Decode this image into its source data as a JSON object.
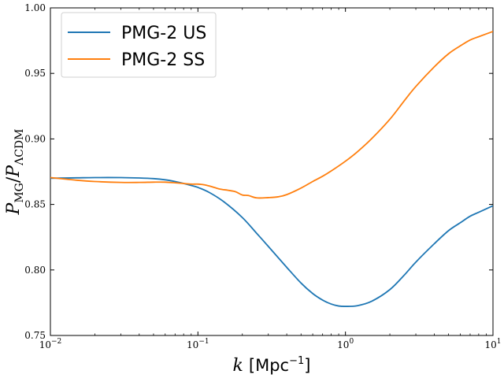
{
  "chart_data": {
    "type": "line",
    "title": "",
    "xlabel": "k [Mpc⁻¹]",
    "ylabel": "P_MG / P_ΛCDM",
    "xscale": "log",
    "xlim": [
      0.01,
      10
    ],
    "ylim": [
      0.75,
      1.0
    ],
    "xticks": [
      {
        "value": 0.01,
        "base": "10",
        "exp": "−2"
      },
      {
        "value": 0.1,
        "base": "10",
        "exp": "−1"
      },
      {
        "value": 1,
        "base": "10",
        "exp": "0"
      },
      {
        "value": 10,
        "base": "10",
        "exp": "1"
      }
    ],
    "yticks": [
      "0.75",
      "0.80",
      "0.85",
      "0.90",
      "0.95",
      "1.00"
    ],
    "legend_position": "top-left",
    "series": [
      {
        "name": "PMG-2 US",
        "color": "#1f77b4",
        "x": [
          0.01,
          0.015,
          0.02,
          0.03,
          0.04,
          0.05,
          0.06,
          0.07,
          0.08,
          0.09,
          0.1,
          0.12,
          0.15,
          0.2,
          0.25,
          0.3,
          0.4,
          0.5,
          0.6,
          0.7,
          0.8,
          0.9,
          1.0,
          1.2,
          1.5,
          2.0,
          2.5,
          3.0,
          4.0,
          5.0,
          6.0,
          7.0,
          8.0,
          10.0
        ],
        "y": [
          0.87,
          0.8703,
          0.8705,
          0.8705,
          0.8702,
          0.8697,
          0.8688,
          0.8675,
          0.866,
          0.8645,
          0.863,
          0.859,
          0.852,
          0.84,
          0.828,
          0.818,
          0.802,
          0.79,
          0.782,
          0.777,
          0.774,
          0.7725,
          0.7722,
          0.7727,
          0.776,
          0.785,
          0.796,
          0.806,
          0.82,
          0.83,
          0.836,
          0.841,
          0.844,
          0.849
        ]
      },
      {
        "name": "PMG-2 SS",
        "color": "#ff7f0e",
        "x": [
          0.01,
          0.015,
          0.02,
          0.03,
          0.04,
          0.05,
          0.06,
          0.07,
          0.08,
          0.09,
          0.1,
          0.11,
          0.12,
          0.14,
          0.16,
          0.18,
          0.2,
          0.22,
          0.25,
          0.3,
          0.35,
          0.4,
          0.5,
          0.6,
          0.7,
          0.8,
          1.0,
          1.2,
          1.5,
          2.0,
          2.5,
          3.0,
          4.0,
          5.0,
          6.0,
          7.0,
          8.0,
          10.0
        ],
        "y": [
          0.8705,
          0.8685,
          0.8675,
          0.8668,
          0.8668,
          0.867,
          0.867,
          0.8665,
          0.866,
          0.8655,
          0.8655,
          0.865,
          0.864,
          0.8618,
          0.8608,
          0.8597,
          0.8572,
          0.8568,
          0.855,
          0.8552,
          0.8558,
          0.8575,
          0.8625,
          0.8675,
          0.8715,
          0.8755,
          0.883,
          0.89,
          0.9,
          0.915,
          0.929,
          0.94,
          0.955,
          0.965,
          0.971,
          0.9755,
          0.978,
          0.982
        ]
      }
    ]
  }
}
